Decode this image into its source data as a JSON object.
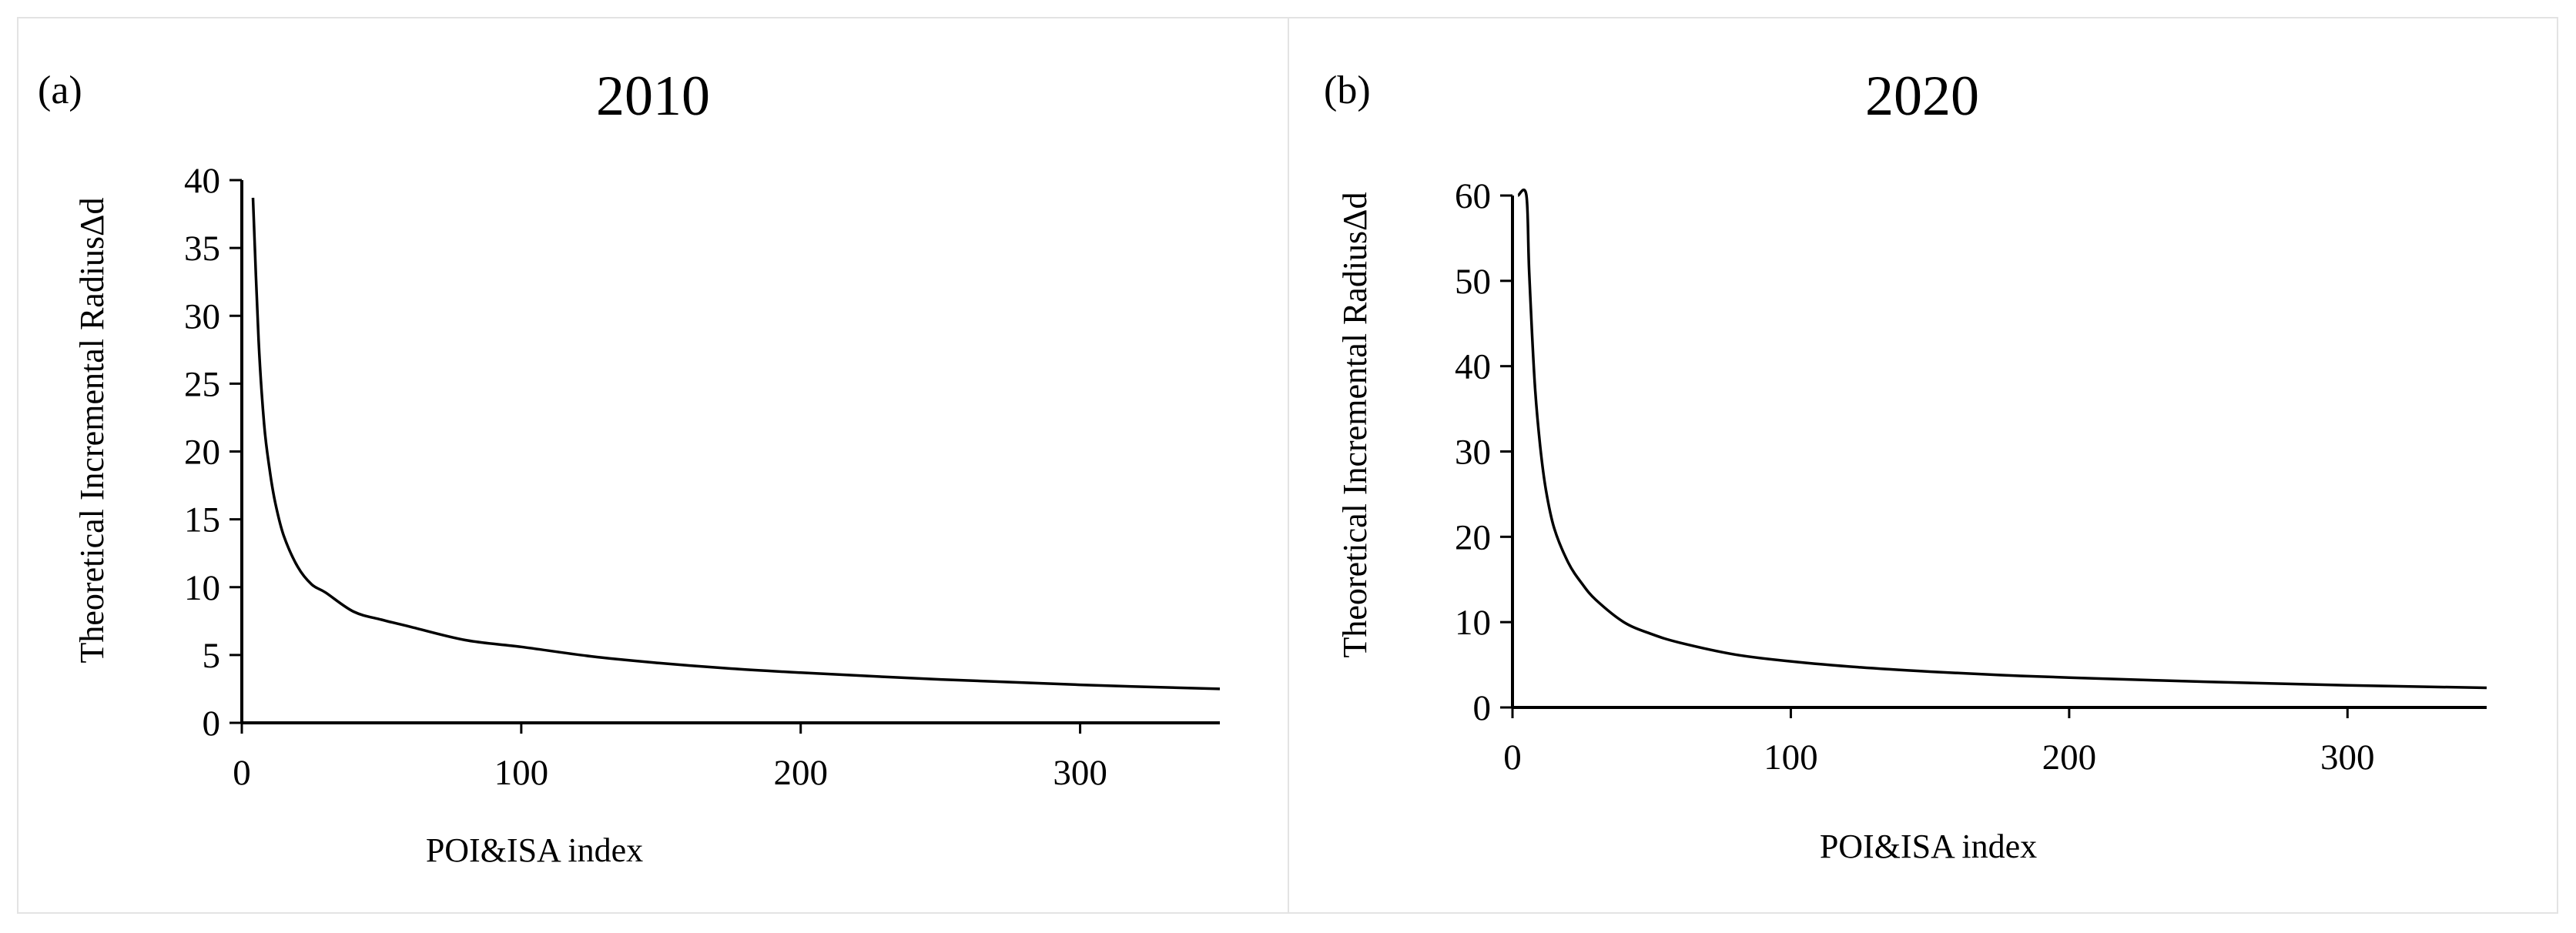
{
  "chart_data": [
    {
      "type": "line",
      "panel_label": "(a)",
      "title": "2010",
      "xlabel": "POI&ISA index",
      "ylabel": "Theoretical Incremental RadiusΔd",
      "xlim": [
        0,
        350
      ],
      "ylim": [
        0,
        40
      ],
      "xticks": [
        0,
        100,
        200,
        300
      ],
      "yticks": [
        0,
        5,
        10,
        15,
        20,
        25,
        30,
        35,
        40
      ],
      "grid": false,
      "series": [
        {
          "x": [
            4,
            6,
            8,
            10,
            12,
            15,
            20,
            25,
            30,
            40,
            50,
            60,
            80,
            100,
            125,
            150,
            175,
            200,
            250,
            300,
            350
          ],
          "values": [
            38.7,
            28.2,
            22.0,
            18.6,
            16.2,
            13.8,
            11.5,
            10.2,
            9.6,
            8.2,
            7.6,
            7.1,
            6.1,
            5.6,
            4.9,
            4.4,
            4.0,
            3.7,
            3.2,
            2.8,
            2.5
          ]
        }
      ]
    },
    {
      "type": "line",
      "panel_label": "(b)",
      "title": "2020",
      "xlabel": "POI&ISA index",
      "ylabel": "Theoretical Incremental RadiusΔd",
      "xlim": [
        0,
        350
      ],
      "ylim": [
        0,
        60
      ],
      "xticks": [
        0,
        100,
        200,
        300
      ],
      "yticks": [
        0,
        10,
        20,
        30,
        40,
        50,
        60
      ],
      "grid": false,
      "series": [
        {
          "x": [
            2,
            5,
            6,
            8,
            10,
            12,
            15,
            20,
            25,
            30,
            40,
            50,
            60,
            80,
            100,
            125,
            150,
            175,
            200,
            250,
            300,
            350
          ],
          "values": [
            60.0,
            60.0,
            51.0,
            38.0,
            30.5,
            25.5,
            21.0,
            17.0,
            14.5,
            12.6,
            10.0,
            8.6,
            7.6,
            6.2,
            5.4,
            4.7,
            4.2,
            3.8,
            3.5,
            3.0,
            2.6,
            2.3
          ]
        }
      ]
    }
  ]
}
